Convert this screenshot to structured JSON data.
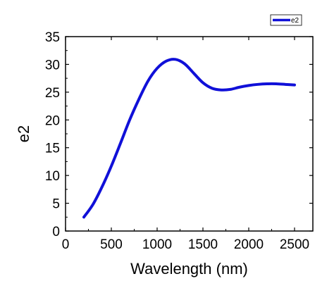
{
  "chart_data": {
    "type": "line",
    "xlabel": "Wavelength (nm)",
    "ylabel": "e2",
    "xlim": [
      0,
      2700
    ],
    "ylim": [
      0,
      35
    ],
    "xticks": [
      0,
      500,
      1000,
      1500,
      2000,
      2500
    ],
    "yticks": [
      0,
      5,
      10,
      15,
      20,
      25,
      30,
      35
    ],
    "grid": false,
    "legend": {
      "position": "top-right",
      "entries": [
        "e2"
      ]
    },
    "series": [
      {
        "name": "e2",
        "color": "#1010d8",
        "x": [
          200,
          300,
          400,
          500,
          600,
          700,
          800,
          900,
          1000,
          1100,
          1200,
          1300,
          1400,
          1500,
          1600,
          1700,
          1800,
          1900,
          2000,
          2100,
          2200,
          2300,
          2400,
          2500
        ],
        "y": [
          2.5,
          4.8,
          8.0,
          11.7,
          15.8,
          20.0,
          23.7,
          27.0,
          29.3,
          30.6,
          30.9,
          30.1,
          28.4,
          26.7,
          25.7,
          25.4,
          25.5,
          25.9,
          26.2,
          26.4,
          26.5,
          26.5,
          26.4,
          26.3
        ]
      }
    ]
  }
}
